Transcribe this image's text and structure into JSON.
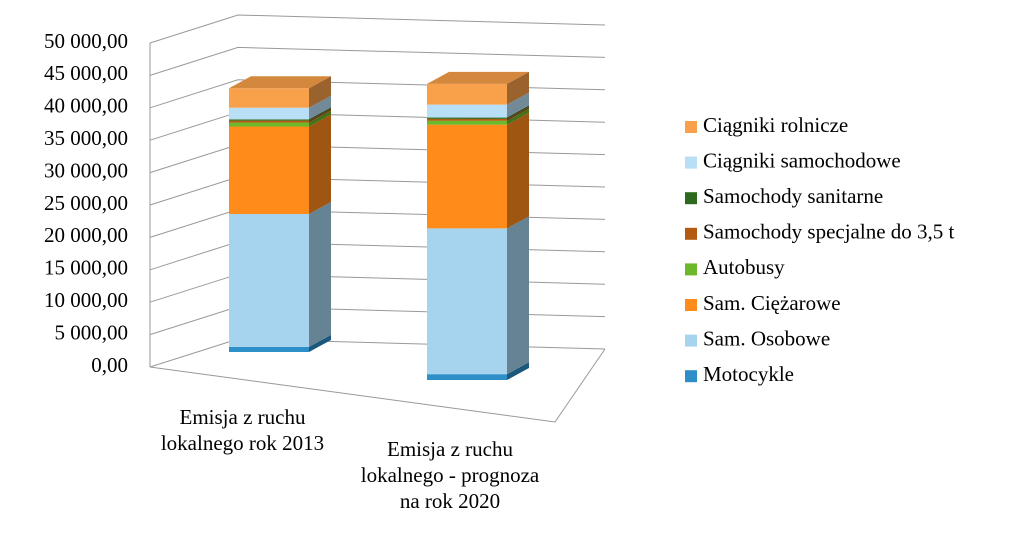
{
  "chart_data": {
    "type": "bar3d_stacked",
    "categories": [
      "Emisja z ruchu lokalnego rok 2013",
      "Emisja z ruchu lokalnego - prognoza na rok 2020"
    ],
    "series": [
      {
        "name": "Motocykle",
        "color": "#2e8fc8",
        "values": [
          800,
          900
        ]
      },
      {
        "name": "Sam. Osobowe",
        "color": "#a6d4ef",
        "values": [
          20500,
          22500
        ]
      },
      {
        "name": "Sam. Ciężarowe",
        "color": "#ff8c1a",
        "values": [
          13500,
          16000
        ]
      },
      {
        "name": "Autobusy",
        "color": "#6bb82a",
        "values": [
          600,
          600
        ]
      },
      {
        "name": "Samochody specjalne do 3,5 t",
        "color": "#b35b12",
        "values": [
          300,
          300
        ]
      },
      {
        "name": "Samochody sanitarne",
        "color": "#2d6a1e",
        "values": [
          200,
          200
        ]
      },
      {
        "name": "Ciągniki samochodowe",
        "color": "#b8dff5",
        "values": [
          1800,
          2000
        ]
      },
      {
        "name": "Ciągniki rolnicze",
        "color": "#f9a04a",
        "values": [
          3000,
          3200
        ]
      }
    ],
    "ylim": [
      0,
      50000
    ],
    "yticks": [
      {
        "value": 0,
        "label": "0,00"
      },
      {
        "value": 5000,
        "label": "5 000,00"
      },
      {
        "value": 10000,
        "label": "10 000,00"
      },
      {
        "value": 15000,
        "label": "15 000,00"
      },
      {
        "value": 20000,
        "label": "20 000,00"
      },
      {
        "value": 25000,
        "label": "25 000,00"
      },
      {
        "value": 30000,
        "label": "30 000,00"
      },
      {
        "value": 35000,
        "label": "35 000,00"
      },
      {
        "value": 40000,
        "label": "40 000,00"
      },
      {
        "value": 45000,
        "label": "45 000,00"
      },
      {
        "value": 50000,
        "label": "50 000,00"
      }
    ],
    "grid": true
  }
}
